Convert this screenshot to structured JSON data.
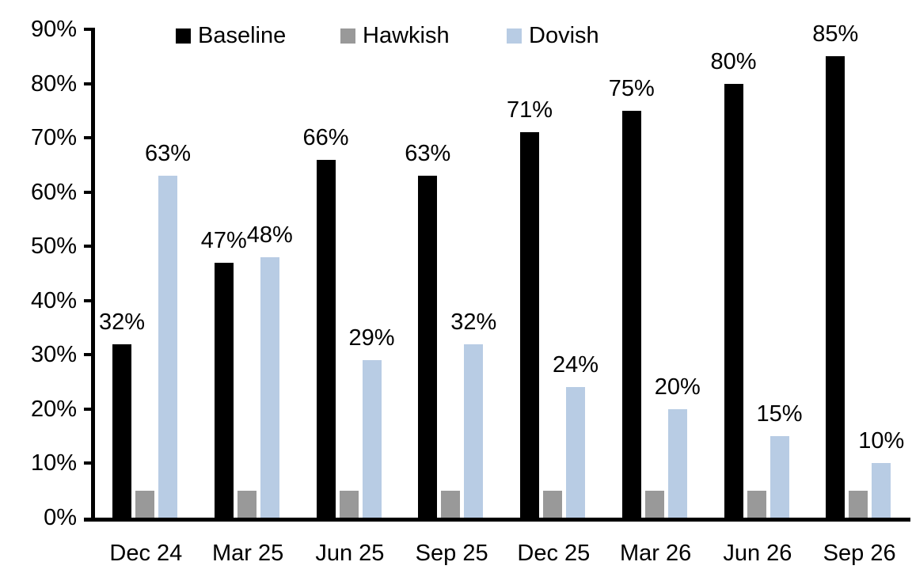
{
  "chart_data": {
    "type": "bar",
    "title": "",
    "xlabel": "",
    "ylabel": "",
    "categories": [
      "Dec 24",
      "Mar 25",
      "Jun 25",
      "Sep 25",
      "Dec 25",
      "Mar 26",
      "Jun 26",
      "Sep 26"
    ],
    "series": [
      {
        "name": "Baseline",
        "color": "#000000",
        "values": [
          32,
          47,
          66,
          63,
          71,
          75,
          80,
          85
        ],
        "labels": [
          "32%",
          "47%",
          "66%",
          "63%",
          "71%",
          "75%",
          "80%",
          "85%"
        ],
        "show_labels": true
      },
      {
        "name": "Hawkish",
        "color": "#999999",
        "values": [
          5,
          5,
          5,
          5,
          5,
          5,
          5,
          5
        ],
        "labels": [
          "",
          "",
          "",
          "",
          "",
          "",
          "",
          ""
        ],
        "show_labels": false
      },
      {
        "name": "Dovish",
        "color": "#B8CCE4",
        "values": [
          63,
          48,
          29,
          32,
          24,
          20,
          15,
          10
        ],
        "labels": [
          "63%",
          "48%",
          "29%",
          "32%",
          "24%",
          "20%",
          "15%",
          "10%"
        ],
        "show_labels": true
      }
    ],
    "ylim": [
      0,
      90
    ],
    "ytick_step": 10,
    "ytick_labels": [
      "0%",
      "10%",
      "20%",
      "30%",
      "40%",
      "50%",
      "60%",
      "70%",
      "80%",
      "90%"
    ],
    "grid": false,
    "legend_position": "top",
    "axis_color": "#000000",
    "background_color": "#ffffff"
  }
}
